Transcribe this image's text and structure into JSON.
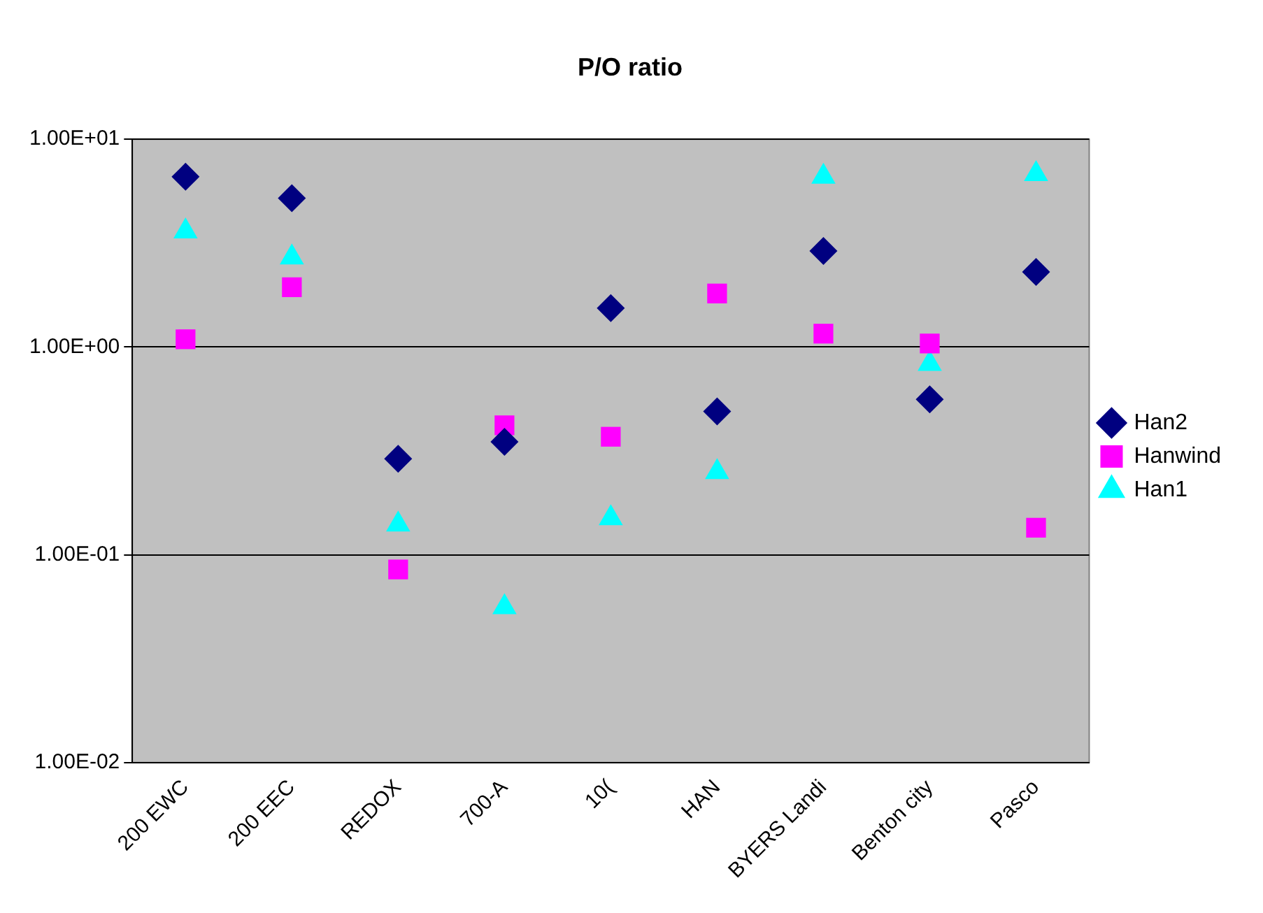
{
  "chart_data": {
    "type": "scatter",
    "title": "P/O ratio",
    "categories": [
      "200 EWC",
      "200 EEC",
      "REDOX",
      "700-A",
      "10(",
      "HAN",
      "BYERS Landi",
      "Benton city",
      "Pasco"
    ],
    "series": [
      {
        "name": "Han2",
        "color": "#000080",
        "marker": "diamond",
        "values": [
          6.6,
          5.2,
          0.29,
          0.35,
          1.54,
          0.49,
          2.9,
          0.56,
          2.3
        ]
      },
      {
        "name": "Hanwind",
        "color": "#ff00ff",
        "marker": "square",
        "values": [
          1.09,
          1.94,
          0.085,
          0.42,
          0.37,
          1.81,
          1.16,
          1.04,
          0.135
        ]
      },
      {
        "name": "Han1",
        "color": "#00ffff",
        "marker": "triangle",
        "values": [
          3.6,
          2.7,
          0.14,
          0.056,
          0.15,
          0.25,
          6.6,
          0.83,
          6.8
        ]
      }
    ],
    "log": "y",
    "ylim": [
      0.01,
      10
    ],
    "yticks": [
      {
        "value": 0.01,
        "label": "1.00E-02"
      },
      {
        "value": 0.1,
        "label": "1.00E-01"
      },
      {
        "value": 1,
        "label": "1.00E+00"
      },
      {
        "value": 10,
        "label": "1.00E+01"
      }
    ],
    "grid": "y",
    "legend": "right"
  }
}
